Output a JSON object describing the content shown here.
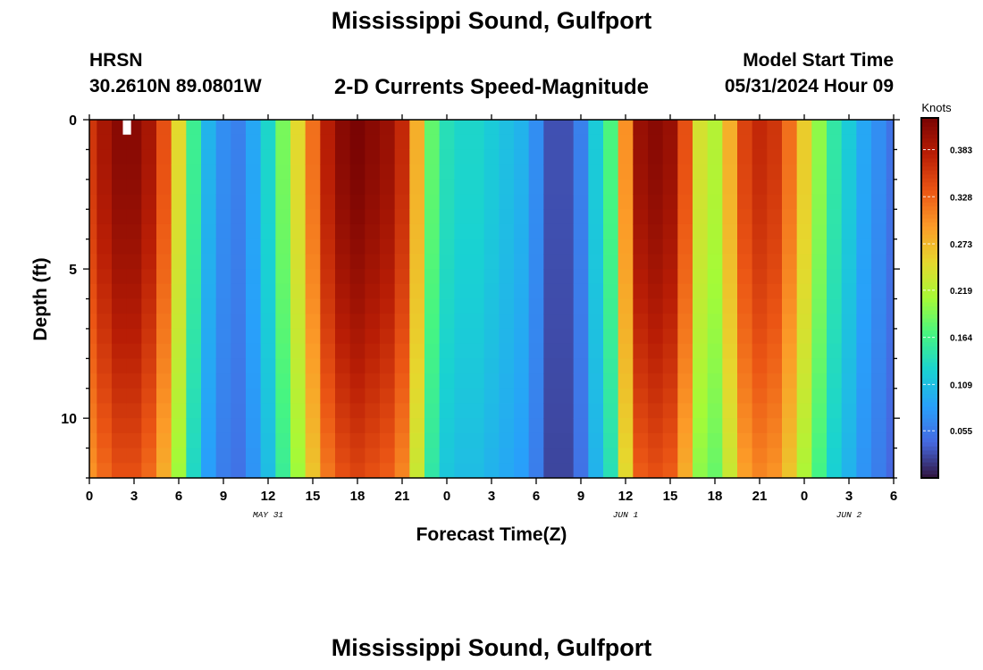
{
  "header": {
    "title": "Mississippi Sound, Gulfport",
    "station": "HRSN",
    "coords": "30.2610N  89.0801W",
    "subtitle": "2-D Currents Speed-Magnitude",
    "model_start_label": "Model Start Time",
    "model_start_value": "05/31/2024 Hour 09"
  },
  "footer": {
    "title": "Mississippi Sound, Gulfport"
  },
  "chart_data": {
    "type": "heatmap",
    "title": "Mississippi Sound, Gulfport",
    "subtitle": "2-D Currents Speed-Magnitude",
    "xlabel": "Forecast Time(Z)",
    "ylabel": "Depth (ft)",
    "x_range": [
      0,
      54
    ],
    "x_unit": "hours from 05/31/2024 00Z",
    "x_ticks": [
      "0",
      "3",
      "6",
      "9",
      "12",
      "15",
      "18",
      "21",
      "0",
      "3",
      "6",
      "9",
      "12",
      "15",
      "18",
      "21",
      "0",
      "3",
      "6"
    ],
    "date_labels": [
      {
        "text": "MAY 31"
      },
      {
        "text": "JUN 1"
      },
      {
        "text": "JUN 2"
      }
    ],
    "y_range": [
      0,
      12
    ],
    "y_ticks": [
      "0",
      "5",
      "10"
    ],
    "y_reversed": true,
    "colorbar": {
      "label": "Knots",
      "range": [
        0.0,
        0.42
      ],
      "ticks": [
        "0.383",
        "0.328",
        "0.273",
        "0.219",
        "0.164",
        "0.109",
        "0.055"
      ],
      "tick_values": [
        0.383,
        0.328,
        0.273,
        0.219,
        0.164,
        0.109,
        0.055
      ],
      "colormap": "turbo"
    },
    "depth_levels_ft": [
      0,
      1,
      2,
      3,
      4,
      5,
      6,
      7,
      8,
      9,
      10,
      11,
      12
    ],
    "speed_profile_surface_knots": {
      "hours": [
        0,
        1,
        2,
        3,
        4,
        5,
        6,
        7,
        8,
        9,
        10,
        11,
        12,
        13,
        14,
        15,
        16,
        17,
        18,
        19,
        20,
        21,
        22,
        23,
        24,
        25,
        26,
        27,
        28,
        29,
        30,
        31,
        32,
        33,
        34,
        35,
        36,
        37,
        38,
        39,
        40,
        41,
        42,
        43,
        44,
        45,
        46,
        47,
        48,
        49,
        50,
        51,
        52,
        53,
        54
      ],
      "values": [
        0.36,
        0.39,
        0.41,
        0.41,
        0.39,
        0.34,
        0.25,
        0.16,
        0.1,
        0.07,
        0.06,
        0.09,
        0.13,
        0.19,
        0.25,
        0.32,
        0.38,
        0.41,
        0.42,
        0.41,
        0.4,
        0.37,
        0.28,
        0.18,
        0.14,
        0.13,
        0.13,
        0.12,
        0.11,
        0.1,
        0.07,
        0.03,
        0.03,
        0.06,
        0.12,
        0.17,
        0.3,
        0.4,
        0.41,
        0.4,
        0.34,
        0.24,
        0.22,
        0.28,
        0.35,
        0.37,
        0.36,
        0.32,
        0.26,
        0.2,
        0.15,
        0.12,
        0.09,
        0.07,
        0.05
      ]
    }
  },
  "colors": {
    "background": "#ffffff",
    "axis": "#000000",
    "missing_cell": "#ffffff"
  }
}
